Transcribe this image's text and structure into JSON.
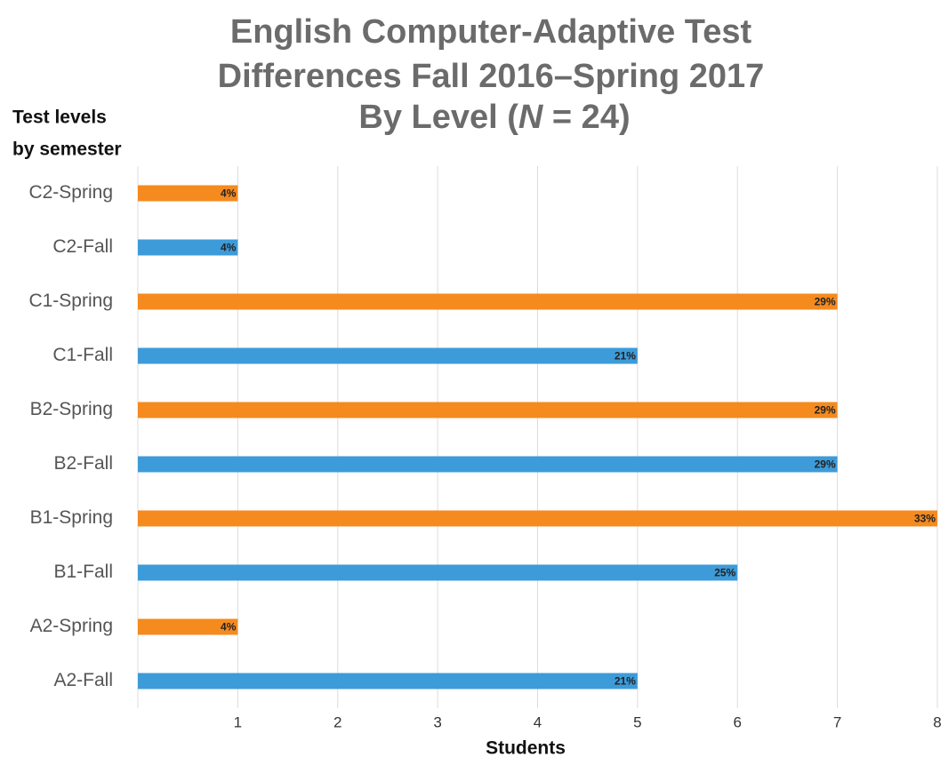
{
  "chart_data": {
    "type": "barh",
    "title_lines": [
      "English Computer-Adaptive Test",
      "Differences Fall 2016–Spring 2017"
    ],
    "title_last_line": [
      "By Level (",
      "N",
      " = 24)"
    ],
    "y_label_lines": [
      "Test levels",
      "by semester"
    ],
    "x_label": "Students",
    "categories": [
      "C2-Spring",
      "C2-Fall",
      "C1-Spring",
      "C1-Fall",
      "B2-Spring",
      "B2-Fall",
      "B1-Spring",
      "B1-Fall",
      "A2-Spring",
      "A2-Fall"
    ],
    "values": [
      1,
      1,
      7,
      5,
      7,
      7,
      8,
      6,
      1,
      5
    ],
    "bar_labels": [
      "4%",
      "4%",
      "29%",
      "21%",
      "29%",
      "29%",
      "33%",
      "25%",
      "4%",
      "21%"
    ],
    "colors": [
      "#f58a1f",
      "#3d9bd9",
      "#f58a1f",
      "#3d9bd9",
      "#f58a1f",
      "#3d9bd9",
      "#f58a1f",
      "#3d9bd9",
      "#f58a1f",
      "#3d9bd9"
    ],
    "xlim": [
      0,
      8
    ],
    "xticks": [
      1,
      2,
      3,
      4,
      5,
      6,
      7,
      8
    ],
    "grid": true
  }
}
